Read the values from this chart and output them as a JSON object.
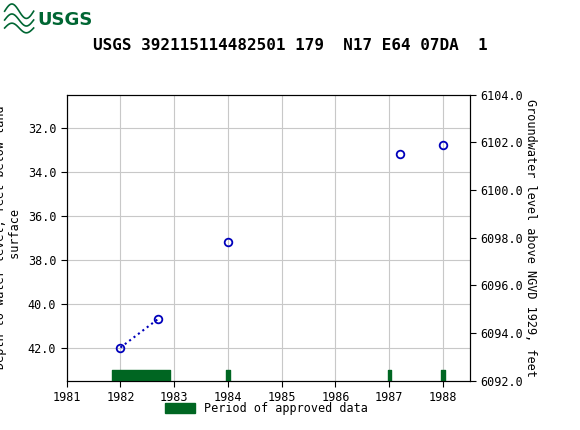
{
  "title": "USGS 392115114482501 179  N17 E64 07DA  1",
  "ylabel_left": "Depth to water level, feet below land\n surface",
  "ylabel_right": "Groundwater level above NGVD 1929, feet",
  "xlim": [
    1981,
    1988.5
  ],
  "ylim_left": [
    43.5,
    30.5
  ],
  "ylim_right": [
    6092.0,
    6104.0
  ],
  "xticks": [
    1981,
    1982,
    1983,
    1984,
    1985,
    1986,
    1987,
    1988
  ],
  "yticks_left": [
    32.0,
    34.0,
    36.0,
    38.0,
    40.0,
    42.0
  ],
  "yticks_right": [
    6092.0,
    6094.0,
    6096.0,
    6098.0,
    6100.0,
    6102.0,
    6104.0
  ],
  "data_x": [
    1982.0,
    1982.7,
    1984.0,
    1987.2,
    1988.0
  ],
  "data_y": [
    42.0,
    40.7,
    37.2,
    33.2,
    32.8
  ],
  "line_color": "#0000bb",
  "marker_color": "#0000bb",
  "connected_indices": [
    0,
    1
  ],
  "green_bars": [
    {
      "x_start": 1981.85,
      "x_end": 1982.93
    },
    {
      "x_start": 1983.97,
      "x_end": 1984.03
    },
    {
      "x_start": 1986.97,
      "x_end": 1987.03
    },
    {
      "x_start": 1987.97,
      "x_end": 1988.03
    }
  ],
  "green_color": "#006622",
  "legend_label": "Period of approved data",
  "header_color": "#006633",
  "background_color": "#ffffff",
  "plot_bg_color": "#ffffff",
  "grid_color": "#c8c8c8",
  "title_fontsize": 11.5,
  "axis_label_fontsize": 8.5,
  "tick_fontsize": 8.5,
  "font_family": "monospace"
}
